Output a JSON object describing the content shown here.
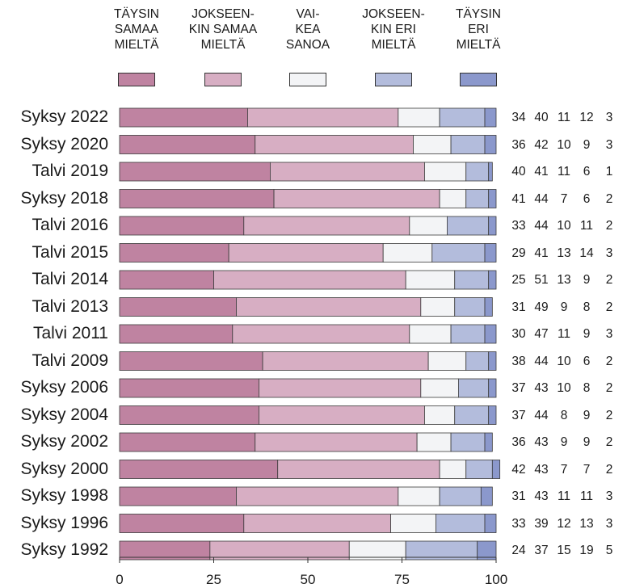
{
  "chart_data": {
    "type": "bar",
    "orientation": "horizontal",
    "stacked": true,
    "categories": [
      "Syksy 2022",
      "Syksy 2020",
      "Talvi 2019",
      "Syksy 2018",
      "Talvi 2016",
      "Talvi 2015",
      "Talvi 2014",
      "Talvi 2013",
      "Talvi 2011",
      "Talvi 2009",
      "Syksy 2006",
      "Syksy 2004",
      "Syksy 2002",
      "Syksy 2000",
      "Syksy 1998",
      "Syksy 1996",
      "Syksy 1992"
    ],
    "series": [
      {
        "name": "TÄYSIN\nSAMAA\nMIELTÄ",
        "color": "#bf83a1",
        "values": [
          34,
          36,
          40,
          41,
          33,
          29,
          25,
          31,
          30,
          38,
          37,
          37,
          36,
          42,
          31,
          33,
          24
        ]
      },
      {
        "name": "JOKSEEN-\nKIN SAMAA\nMIELTÄ",
        "color": "#d7aec3",
        "values": [
          40,
          42,
          41,
          44,
          44,
          41,
          51,
          49,
          47,
          44,
          43,
          44,
          43,
          43,
          43,
          39,
          37
        ]
      },
      {
        "name": "VAI-\nKEA\nSANOA",
        "color": "#f3f4f6",
        "values": [
          11,
          10,
          11,
          7,
          10,
          13,
          13,
          9,
          11,
          10,
          10,
          8,
          9,
          7,
          11,
          12,
          15
        ]
      },
      {
        "name": "JOKSEEN-\nKIN ERI\nMIELTÄ",
        "color": "#b3bcdc",
        "values": [
          12,
          9,
          6,
          6,
          11,
          14,
          9,
          8,
          9,
          6,
          8,
          9,
          9,
          7,
          11,
          13,
          19
        ]
      },
      {
        "name": "TÄYSIN\nERI\nMIELTÄ",
        "color": "#8b98cc",
        "values": [
          3,
          3,
          1,
          2,
          2,
          3,
          2,
          2,
          3,
          2,
          2,
          2,
          2,
          2,
          3,
          3,
          5
        ]
      }
    ],
    "xlim": [
      0,
      100
    ],
    "xticks": [
      "0",
      "25",
      "50",
      "75",
      "100"
    ],
    "legend_position": "top"
  }
}
